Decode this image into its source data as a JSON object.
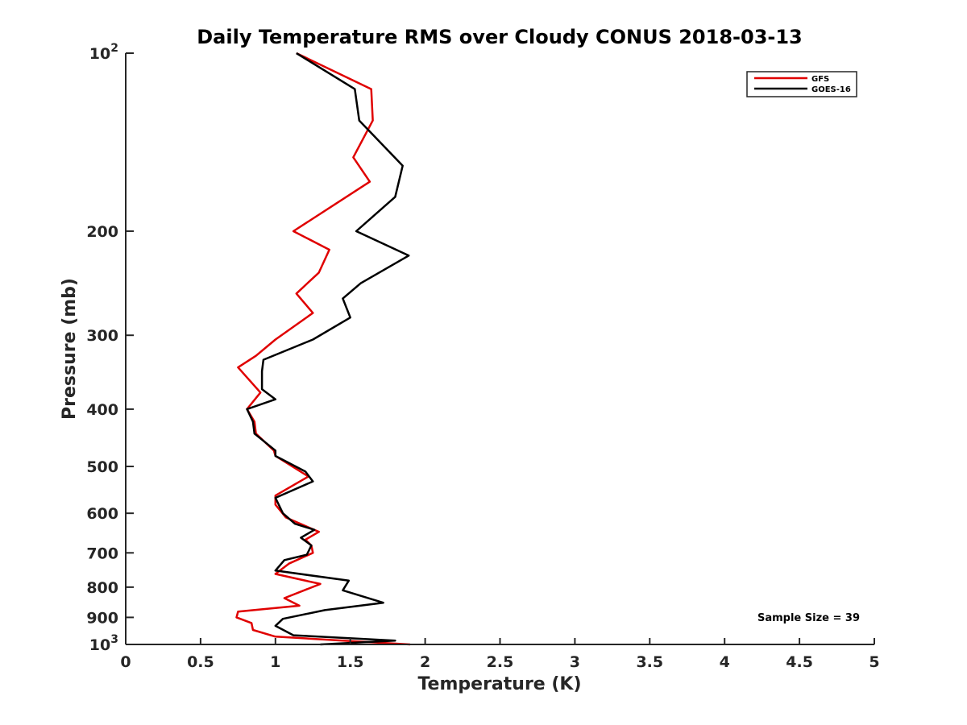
{
  "chart_data": {
    "type": "line",
    "title": "Daily Temperature RMS over Cloudy CONUS 2018-03-13",
    "xlabel": "Temperature (K)",
    "ylabel": "Pressure (mb)",
    "xlim": [
      0,
      5
    ],
    "ylim": [
      100,
      1000
    ],
    "y_scale": "log",
    "y_reversed": true,
    "grid": false,
    "legend_position": "top-right",
    "x_ticks": [
      0,
      0.5,
      1,
      1.5,
      2,
      2.5,
      3,
      3.5,
      4,
      4.5,
      5
    ],
    "x_tick_labels": [
      "0",
      "0.5",
      "1",
      "1.5",
      "2",
      "2.5",
      "3",
      "3.5",
      "4",
      "4.5",
      "5"
    ],
    "y_ticks": [
      100,
      200,
      300,
      400,
      500,
      600,
      700,
      800,
      900,
      1000
    ],
    "y_tick_labels": [
      {
        "base": "10",
        "exp": "2"
      },
      {
        "base": "200",
        "exp": ""
      },
      {
        "base": "300",
        "exp": ""
      },
      {
        "base": "400",
        "exp": ""
      },
      {
        "base": "500",
        "exp": ""
      },
      {
        "base": "600",
        "exp": ""
      },
      {
        "base": "700",
        "exp": ""
      },
      {
        "base": "800",
        "exp": ""
      },
      {
        "base": "900",
        "exp": ""
      },
      {
        "base": "10",
        "exp": "3"
      }
    ],
    "annotation": "Sample Size = 39",
    "series": [
      {
        "name": "GFS",
        "color": "#e00000",
        "points": [
          [
            1.14,
            100
          ],
          [
            1.64,
            115
          ],
          [
            1.65,
            130
          ],
          [
            1.52,
            150
          ],
          [
            1.63,
            165
          ],
          [
            1.12,
            200
          ],
          [
            1.36,
            215
          ],
          [
            1.29,
            235
          ],
          [
            1.14,
            255
          ],
          [
            1.25,
            275
          ],
          [
            1.0,
            305
          ],
          [
            0.87,
            325
          ],
          [
            0.75,
            340
          ],
          [
            0.9,
            375
          ],
          [
            0.81,
            400
          ],
          [
            0.86,
            420
          ],
          [
            0.87,
            440
          ],
          [
            0.99,
            470
          ],
          [
            1.0,
            480
          ],
          [
            1.22,
            520
          ],
          [
            1.0,
            560
          ],
          [
            1.0,
            580
          ],
          [
            1.07,
            610
          ],
          [
            1.29,
            645
          ],
          [
            1.2,
            665
          ],
          [
            1.24,
            680
          ],
          [
            1.25,
            700
          ],
          [
            1.09,
            730
          ],
          [
            1.0,
            760
          ],
          [
            1.3,
            790
          ],
          [
            1.06,
            835
          ],
          [
            1.16,
            860
          ],
          [
            0.75,
            880
          ],
          [
            0.74,
            900
          ],
          [
            0.84,
            920
          ],
          [
            0.85,
            945
          ],
          [
            1.0,
            970
          ],
          [
            1.45,
            985
          ],
          [
            1.9,
            1000
          ]
        ]
      },
      {
        "name": "GOES-16",
        "color": "#000000",
        "points": [
          [
            1.14,
            100
          ],
          [
            1.53,
            115
          ],
          [
            1.56,
            130
          ],
          [
            1.85,
            155
          ],
          [
            1.8,
            175
          ],
          [
            1.54,
            200
          ],
          [
            1.89,
            220
          ],
          [
            1.57,
            245
          ],
          [
            1.45,
            260
          ],
          [
            1.5,
            280
          ],
          [
            1.25,
            305
          ],
          [
            0.92,
            330
          ],
          [
            0.91,
            345
          ],
          [
            0.91,
            370
          ],
          [
            1.0,
            385
          ],
          [
            0.81,
            400
          ],
          [
            0.85,
            420
          ],
          [
            0.86,
            440
          ],
          [
            1.0,
            470
          ],
          [
            1.0,
            480
          ],
          [
            1.2,
            510
          ],
          [
            1.25,
            530
          ],
          [
            1.0,
            565
          ],
          [
            1.05,
            600
          ],
          [
            1.13,
            625
          ],
          [
            1.26,
            640
          ],
          [
            1.17,
            660
          ],
          [
            1.24,
            680
          ],
          [
            1.21,
            705
          ],
          [
            1.06,
            720
          ],
          [
            1.0,
            750
          ],
          [
            1.49,
            780
          ],
          [
            1.45,
            810
          ],
          [
            1.72,
            850
          ],
          [
            1.33,
            875
          ],
          [
            1.05,
            905
          ],
          [
            1.0,
            930
          ],
          [
            1.12,
            965
          ],
          [
            1.8,
            985
          ],
          [
            1.3,
            1000
          ]
        ]
      }
    ]
  }
}
